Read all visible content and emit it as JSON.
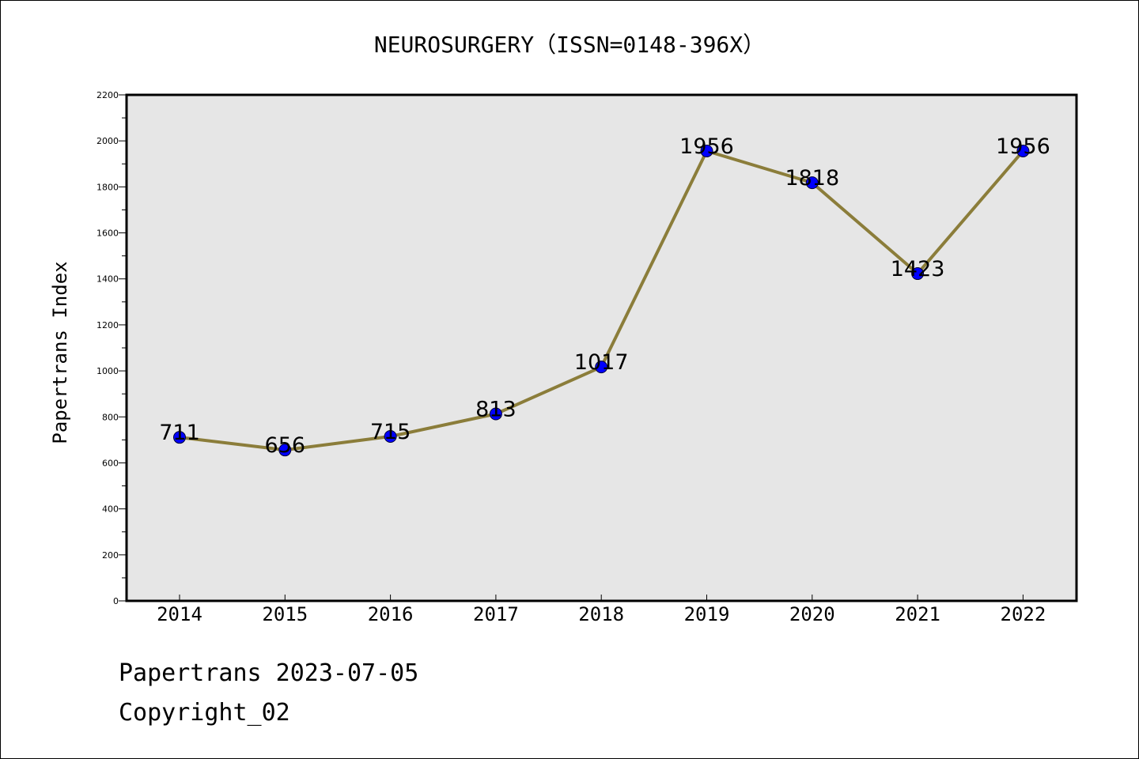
{
  "chart_data": {
    "type": "line",
    "title": "NEUROSURGERY（ISSN=0148-396X）",
    "xlabel": "",
    "ylabel": "Papertrans Index",
    "categories": [
      "2014",
      "2015",
      "2016",
      "2017",
      "2018",
      "2019",
      "2020",
      "2021",
      "2022"
    ],
    "values": [
      711,
      656,
      715,
      813,
      1017,
      1956,
      1818,
      1423,
      1956
    ],
    "data_labels": [
      "711",
      "656",
      "715",
      "813",
      "1017",
      "1956",
      "1818",
      "1423",
      "1956"
    ],
    "ylim": [
      0,
      2200
    ],
    "y_ticks": [
      "0",
      "200",
      "400",
      "600",
      "800",
      "1000",
      "1200",
      "1400",
      "1600",
      "1800",
      "2000",
      "2200"
    ],
    "grid": false,
    "colors": {
      "line": "#8B7D3A",
      "marker": "#0000FF",
      "plot_background": "#E6E6E6"
    }
  },
  "footer": {
    "line1": "Papertrans 2023-07-05",
    "line2": "Copyright_02"
  }
}
